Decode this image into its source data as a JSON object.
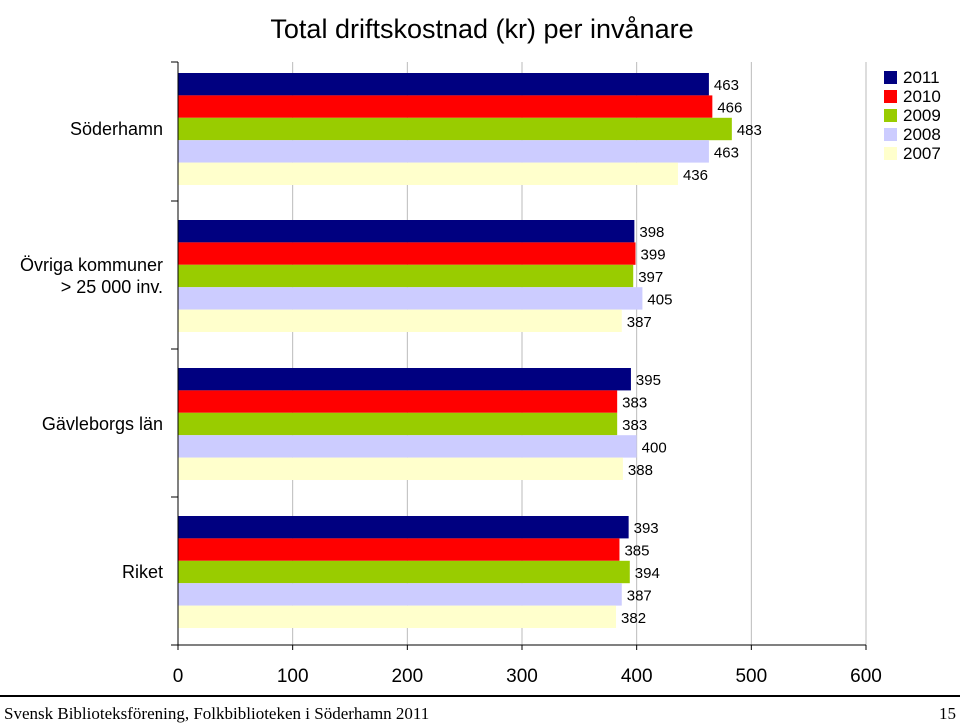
{
  "chart_data": {
    "type": "bar",
    "orientation": "horizontal",
    "title": "Total driftskostnad (kr) per invånare",
    "categories": [
      "Söderhamn",
      "Övriga kommuner\n> 25 000 inv.",
      "Gävleborgs län",
      "Riket"
    ],
    "series": [
      {
        "name": "2011",
        "color": "#000080",
        "values": [
          463,
          398,
          395,
          393
        ]
      },
      {
        "name": "2010",
        "color": "#ff0000",
        "values": [
          466,
          399,
          383,
          385
        ]
      },
      {
        "name": "2009",
        "color": "#99cc00",
        "values": [
          483,
          397,
          383,
          394
        ]
      },
      {
        "name": "2008",
        "color": "#ccccff",
        "values": [
          463,
          405,
          400,
          387
        ]
      },
      {
        "name": "2007",
        "color": "#ffffcc",
        "values": [
          436,
          387,
          388,
          382
        ]
      }
    ],
    "xlim": [
      0,
      600
    ],
    "xticks": [
      "0",
      "100",
      "200",
      "300",
      "400",
      "500",
      "600"
    ],
    "legend": "top-right",
    "xlabel": "",
    "ylabel": ""
  },
  "footer": {
    "left": "Svensk Biblioteksförening, Folkbiblioteken i Söderhamn 2011",
    "page_number": "15"
  }
}
